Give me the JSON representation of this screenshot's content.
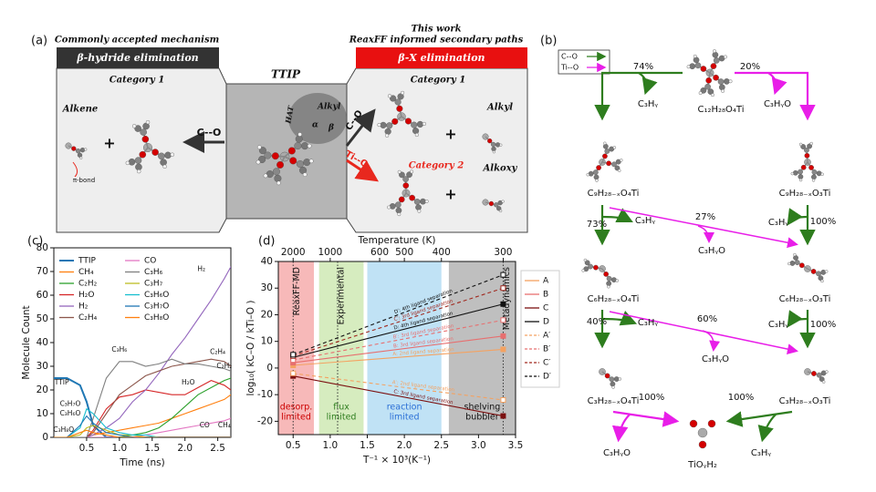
{
  "panel_a": {
    "label": "(a)",
    "left": {
      "heading": "Commonly accepted mechanism",
      "banner": "β-hydride elimination",
      "category": "Category 1",
      "alkene": "Alkene",
      "pi_bond": "π-bond",
      "plus": "+",
      "arrow": "C--O"
    },
    "center": {
      "title": "TTIP",
      "hat": "HAT",
      "alkyl": "Alkyl",
      "alpha": "α",
      "beta": "β"
    },
    "right": {
      "heading1": "This work",
      "heading2": "ReaxFF informed secondary paths",
      "banner": "β-X elimination",
      "category1": "Category 1",
      "alkyl": "Alkyl",
      "plus1": "+",
      "arrow1": "C--O",
      "arrow2": "Ti--O",
      "category2": "Category 2",
      "alkoxy": "Alkoxy",
      "plus2": "+"
    }
  },
  "panel_b": {
    "label": "(b)",
    "legend": [
      "C--O",
      "Ti--O"
    ],
    "nodes": {
      "top": "C₁₂H₂₈O₄Ti",
      "r2l": "C₉H₂₈₋ₓO₄Ti",
      "r2r": "C₉H₂₈₋ₓO₃Ti",
      "r3l": "C₆H₂₈₋ₓO₄Ti",
      "r3r": "C₆H₂₈₋ₓO₃Ti",
      "r4l": "C₃H₂₈₋ₓO₄Ti",
      "r4r": "C₃H₂₈₋ₓO₃Ti",
      "final": "TiOᵧH₂"
    },
    "products": {
      "p1": "C₃Hᵧ",
      "p2": "C₃HᵧO",
      "p3": "C₃Hᵧ",
      "p4": "C₃HᵧO",
      "p5": "C₃Hᵧ",
      "p6": "C₃Hᵧ",
      "p7": "C₃HᵧO",
      "p8": "C₃Hᵧ",
      "p9": "C₃HᵧO",
      "p10": "C₃Hᵧ"
    },
    "percents": {
      "e1": "74%",
      "e2": "20%",
      "e3": "73%",
      "e4": "27%",
      "e5": "100%",
      "e6": "40%",
      "e7": "60%",
      "e8": "100%",
      "e9": "100%",
      "e10": "100%"
    }
  },
  "chart_data": [
    {
      "type": "line",
      "panel": "(c)",
      "xlabel": "Time (ns)",
      "ylabel": "Molecule Count",
      "xlim": [
        0,
        2.7
      ],
      "ylim": [
        0,
        80
      ],
      "xticks": [
        0.5,
        {
          "value": 1,
          "label": "1.0"
        },
        1.5,
        {
          "value": 2,
          "label": "2.0"
        },
        2.5
      ],
      "yticks": [
        0,
        10,
        20,
        30,
        40,
        50,
        60,
        70,
        80
      ],
      "legend": "upper left",
      "x": [
        0,
        0.2,
        0.4,
        0.5,
        0.6,
        0.8,
        1.0,
        1.2,
        1.4,
        1.6,
        1.8,
        2.0,
        2.2,
        2.4,
        2.6,
        2.7
      ],
      "series": [
        {
          "name": "TTIP",
          "color": "#1f77b4",
          "values": [
            25,
            25,
            22,
            15,
            5,
            0,
            0,
            0,
            0,
            0,
            0,
            0,
            0,
            0,
            0,
            0
          ]
        },
        {
          "name": "CH₄",
          "color": "#ff7f0e",
          "values": [
            0,
            0,
            0,
            0,
            1,
            2,
            3,
            4,
            5,
            6,
            8,
            10,
            12,
            14,
            16,
            18
          ]
        },
        {
          "name": "C₂H₂",
          "color": "#2ca02c",
          "values": [
            0,
            0,
            0,
            0,
            0,
            0,
            0,
            1,
            2,
            4,
            8,
            13,
            18,
            21,
            24,
            25
          ]
        },
        {
          "name": "H₂O",
          "color": "#d62728",
          "values": [
            0,
            0,
            0,
            0,
            3,
            12,
            17,
            18,
            20,
            19,
            18,
            18,
            21,
            24,
            22,
            20
          ]
        },
        {
          "name": "H₂",
          "color": "#9467bd",
          "values": [
            0,
            0,
            0,
            0,
            1,
            4,
            8,
            15,
            20,
            27,
            35,
            42,
            50,
            58,
            67,
            72
          ]
        },
        {
          "name": "C₂H₄",
          "color": "#8c564b",
          "values": [
            0,
            0,
            0,
            0,
            2,
            10,
            18,
            22,
            26,
            28,
            30,
            31,
            32,
            33,
            32,
            30
          ]
        },
        {
          "name": "CO",
          "color": "#e377c2",
          "values": [
            0,
            0,
            0,
            0,
            0,
            0,
            0,
            0,
            1,
            2,
            3,
            4,
            5,
            6,
            7,
            8
          ]
        },
        {
          "name": "C₃H₆",
          "color": "#7f7f7f",
          "values": [
            0,
            0,
            0,
            0,
            8,
            25,
            32,
            32,
            30,
            31,
            33,
            31,
            31,
            30,
            29,
            28
          ]
        },
        {
          "name": "C₃H₇",
          "color": "#bcbd22",
          "values": [
            0,
            0,
            1,
            4,
            5,
            3,
            1,
            1,
            0,
            0,
            0,
            0,
            0,
            0,
            0,
            0
          ]
        },
        {
          "name": "C₃H₆O",
          "color": "#17becf",
          "values": [
            0,
            0,
            4,
            12,
            10,
            4,
            2,
            1,
            1,
            0,
            0,
            0,
            0,
            0,
            0,
            0
          ]
        },
        {
          "name": "C₃H₇O",
          "color": "#1f77b4",
          "values": [
            0,
            0,
            5,
            9,
            6,
            2,
            1,
            0,
            0,
            0,
            0,
            0,
            0,
            0,
            0,
            0
          ]
        },
        {
          "name": "C₃H₈O",
          "color": "#ff7f0e",
          "values": [
            0,
            0,
            2,
            3,
            2,
            1,
            0,
            0,
            0,
            0,
            0,
            0,
            0,
            0,
            0,
            0
          ]
        }
      ],
      "annotations": [
        {
          "text": "TTIP",
          "x": 0.12,
          "y": 23
        },
        {
          "text": "C₃H₇O",
          "x": 0.25,
          "y": 14
        },
        {
          "text": "C₃H₆O",
          "x": 0.25,
          "y": 10
        },
        {
          "text": "C₃H₈O",
          "x": 0.15,
          "y": 3
        },
        {
          "text": "H₂",
          "x": 2.25,
          "y": 71
        },
        {
          "text": "C₃H₆",
          "x": 1.0,
          "y": 37
        },
        {
          "text": "C₂H₄",
          "x": 2.5,
          "y": 36
        },
        {
          "text": "H₂O",
          "x": 2.05,
          "y": 23
        },
        {
          "text": "C₂H₂",
          "x": 2.6,
          "y": 30
        },
        {
          "text": "CO",
          "x": 2.3,
          "y": 5
        },
        {
          "text": "CH₄",
          "x": 2.6,
          "y": 5
        }
      ]
    },
    {
      "type": "line",
      "panel": "(d)",
      "xlabel": "T⁻¹ × 10³(K⁻¹)",
      "ylabel": "log₁₀( kC–O / kTi–O )",
      "x2label": "Temperature (K)",
      "xlim": [
        0.3,
        3.5
      ],
      "ylim": [
        -25,
        40
      ],
      "xticks": [
        0.5,
        {
          "value": 1,
          "label": "1.0"
        },
        1.5,
        {
          "value": 2,
          "label": "2.0"
        },
        2.5,
        {
          "value": 3,
          "label": "3.0"
        },
        3.5
      ],
      "yticks": [
        -20,
        -10,
        0,
        10,
        20,
        30,
        40
      ],
      "x2ticks": [
        2000,
        1000,
        600,
        500,
        400,
        300
      ],
      "legend": "outside right",
      "x": [
        0.5,
        3.333
      ],
      "regions": [
        {
          "label": [
            "desorp.",
            "limited"
          ],
          "from": 0.3,
          "to": 0.78,
          "color": "#f08080"
        },
        {
          "label": [
            "flux",
            "limited"
          ],
          "from": 0.85,
          "to": 1.45,
          "color": "#b5dc8a"
        },
        {
          "label": [
            "reaction",
            "limited"
          ],
          "from": 1.5,
          "to": 2.5,
          "color": "#8ccbed"
        },
        {
          "label": [
            "shelving",
            "bubbler"
          ],
          "from": 2.6,
          "to": 3.5,
          "color": "#8a8a8a"
        }
      ],
      "vlines": [
        {
          "label": "ReaxFF-MD",
          "x": 0.5
        },
        {
          "label": "Experimental",
          "x": 1.1
        },
        {
          "label": "Metadynamics",
          "x": 3.333
        }
      ],
      "series": [
        {
          "name": "A",
          "color": "#f4a261",
          "dashed": false,
          "note": "A: 2nd ligand separation",
          "values": [
            1,
            7
          ]
        },
        {
          "name": "B",
          "color": "#e76f6f",
          "dashed": false,
          "note": "B: 3rd ligand separation",
          "values": [
            2,
            12
          ]
        },
        {
          "name": "C",
          "color": "#7b1010",
          "dashed": false,
          "note": "C: 3rd ligand separation",
          "values": [
            -3,
            -18
          ]
        },
        {
          "name": "D",
          "color": "#111111",
          "dashed": false,
          "note": "D: 4th ligand separation",
          "values": [
            4,
            24
          ]
        },
        {
          "name": "A′",
          "color": "#f4a261",
          "dashed": true,
          "note": "A′: 2nd ligand separation",
          "values": [
            -2,
            -12
          ]
        },
        {
          "name": "B′",
          "color": "#e76f6f",
          "dashed": true,
          "note": "B′: 3rd ligand separation",
          "values": [
            3,
            18
          ]
        },
        {
          "name": "C′",
          "color": "#a0281e",
          "dashed": true,
          "note": "C′: 3rd ligand separation",
          "values": [
            4.5,
            30
          ]
        },
        {
          "name": "D′",
          "color": "#111111",
          "dashed": true,
          "note": "D′: 4th ligand separation",
          "values": [
            5,
            35
          ]
        }
      ]
    }
  ]
}
